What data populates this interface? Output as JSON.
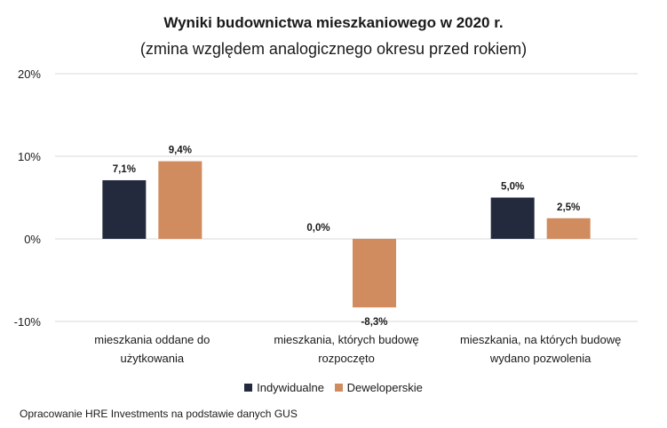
{
  "chart_data": {
    "type": "bar",
    "title": "Wyniki budownictwa mieszkaniowego w 2020 r.",
    "subtitle": "(zmina względem analogicznego okresu przed rokiem)",
    "categories": [
      [
        "mieszkania oddane do",
        "użytkowania"
      ],
      [
        "mieszkania, których budowę",
        "rozpoczęto"
      ],
      [
        "mieszkania, na których budowę",
        "wydano pozwolenia"
      ]
    ],
    "series": [
      {
        "name": "Indywidualne",
        "color": "#232a3d",
        "values": [
          7.1,
          0.0,
          5.0
        ],
        "labels": [
          "7,1%",
          "0,0%",
          "5,0%"
        ]
      },
      {
        "name": "Deweloperskie",
        "color": "#d08c5f",
        "values": [
          9.4,
          -8.3,
          2.5
        ],
        "labels": [
          "9,4%",
          "-8,3%",
          "2,5%"
        ]
      }
    ],
    "ylim": [
      -10,
      20
    ],
    "yticks": [
      -10,
      0,
      10,
      20
    ],
    "ytick_labels": [
      "-10%",
      "0%",
      "10%",
      "20%"
    ],
    "grid": true,
    "legend_position": "bottom"
  },
  "source_note": "Opracowanie HRE Investments na podstawie danych GUS"
}
